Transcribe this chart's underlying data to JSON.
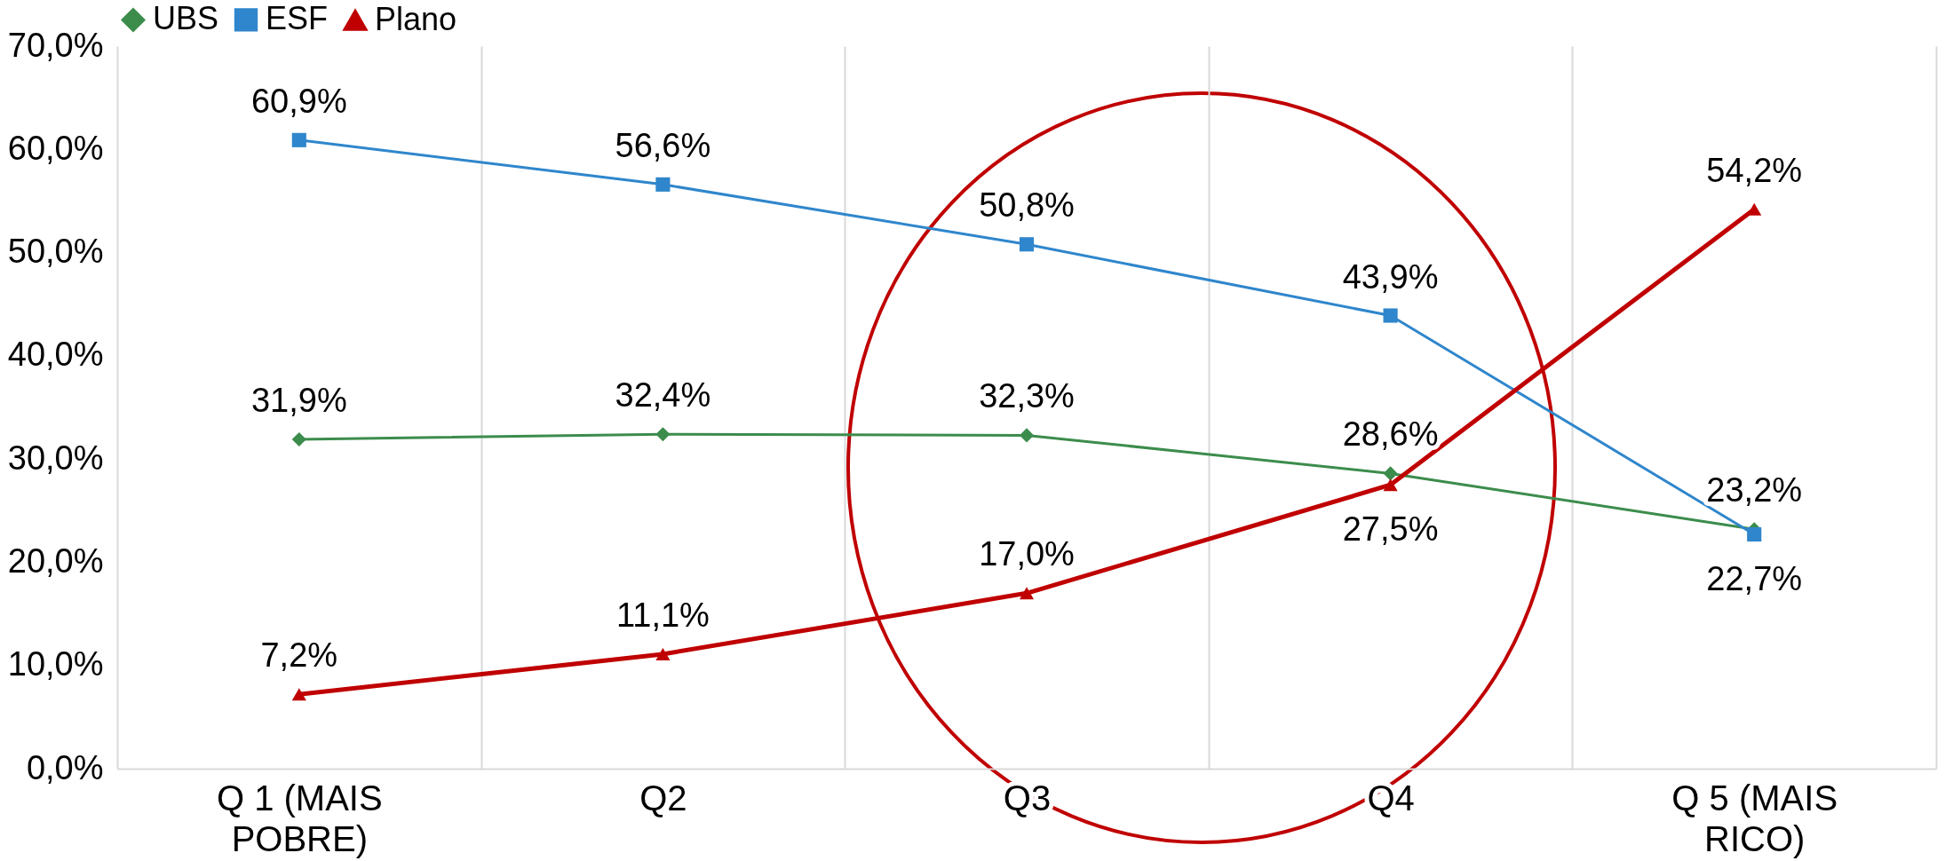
{
  "chart_data": {
    "type": "line",
    "categories": [
      "Q 1 (MAIS POBRE)",
      "Q2",
      "Q3",
      "Q4",
      "Q 5 (MAIS RICO)"
    ],
    "series": [
      {
        "name": "UBS",
        "color": "#3c8c4c",
        "marker": "diamond",
        "values": [
          31.9,
          32.4,
          32.3,
          28.6,
          23.2
        ],
        "value_labels": [
          "31,9%",
          "32,4%",
          "32,3%",
          "28,6%",
          "23,2%"
        ]
      },
      {
        "name": "ESF",
        "color": "#2f86cc",
        "marker": "square",
        "values": [
          60.9,
          56.6,
          50.8,
          43.9,
          22.7
        ],
        "value_labels": [
          "60,9%",
          "56,6%",
          "50,8%",
          "43,9%",
          "22,7%"
        ]
      },
      {
        "name": "Plano",
        "color": "#c00000",
        "marker": "triangle",
        "values": [
          7.2,
          11.1,
          17.0,
          27.5,
          54.2
        ],
        "value_labels": [
          "7,2%",
          "11,1%",
          "17,0%",
          "27,5%",
          "54,2%"
        ]
      }
    ],
    "ylim": [
      0,
      70
    ],
    "yticks": [
      {
        "value": 0,
        "label": "0,0%"
      },
      {
        "value": 10,
        "label": "10,0%"
      },
      {
        "value": 20,
        "label": "20,0%"
      },
      {
        "value": 30,
        "label": "30,0%"
      },
      {
        "value": 40,
        "label": "40,0%"
      },
      {
        "value": 50,
        "label": "50,0%"
      },
      {
        "value": 60,
        "label": "60,0%"
      },
      {
        "value": 70,
        "label": "70,0%"
      }
    ],
    "grid": "x",
    "legend": "top"
  }
}
